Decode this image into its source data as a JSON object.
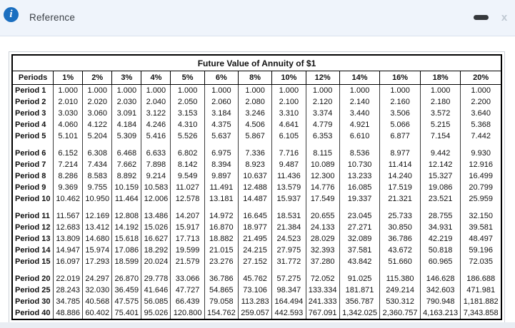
{
  "window": {
    "title": "Reference",
    "icons": {
      "info_glyph": "i",
      "close_glyph": "x"
    }
  },
  "table": {
    "title": "Future Value of Annuity of $1",
    "columns": [
      "Periods",
      "1%",
      "2%",
      "3%",
      "4%",
      "5%",
      "6%",
      "8%",
      "10%",
      "12%",
      "14%",
      "16%",
      "18%",
      "20%"
    ],
    "row_groups": [
      {
        "rows": [
          {
            "label": "Period 1",
            "values": [
              "1.000",
              "1.000",
              "1.000",
              "1.000",
              "1.000",
              "1.000",
              "1.000",
              "1.000",
              "1.000",
              "1.000",
              "1.000",
              "1.000",
              "1.000"
            ]
          },
          {
            "label": "Period 2",
            "values": [
              "2.010",
              "2.020",
              "2.030",
              "2.040",
              "2.050",
              "2.060",
              "2.080",
              "2.100",
              "2.120",
              "2.140",
              "2.160",
              "2.180",
              "2.200"
            ]
          },
          {
            "label": "Period 3",
            "values": [
              "3.030",
              "3.060",
              "3.091",
              "3.122",
              "3.153",
              "3.184",
              "3.246",
              "3.310",
              "3.374",
              "3.440",
              "3.506",
              "3.572",
              "3.640"
            ]
          },
          {
            "label": "Period 4",
            "values": [
              "4.060",
              "4.122",
              "4.184",
              "4.246",
              "4.310",
              "4.375",
              "4.506",
              "4.641",
              "4.779",
              "4.921",
              "5.066",
              "5.215",
              "5.368"
            ]
          },
          {
            "label": "Period 5",
            "values": [
              "5.101",
              "5.204",
              "5.309",
              "5.416",
              "5.526",
              "5.637",
              "5.867",
              "6.105",
              "6.353",
              "6.610",
              "6.877",
              "7.154",
              "7.442"
            ]
          }
        ]
      },
      {
        "rows": [
          {
            "label": "Period 6",
            "values": [
              "6.152",
              "6.308",
              "6.468",
              "6.633",
              "6.802",
              "6.975",
              "7.336",
              "7.716",
              "8.115",
              "8.536",
              "8.977",
              "9.442",
              "9.930"
            ]
          },
          {
            "label": "Period 7",
            "values": [
              "7.214",
              "7.434",
              "7.662",
              "7.898",
              "8.142",
              "8.394",
              "8.923",
              "9.487",
              "10.089",
              "10.730",
              "11.414",
              "12.142",
              "12.916"
            ]
          },
          {
            "label": "Period 8",
            "values": [
              "8.286",
              "8.583",
              "8.892",
              "9.214",
              "9.549",
              "9.897",
              "10.637",
              "11.436",
              "12.300",
              "13.233",
              "14.240",
              "15.327",
              "16.499"
            ]
          },
          {
            "label": "Period 9",
            "values": [
              "9.369",
              "9.755",
              "10.159",
              "10.583",
              "11.027",
              "11.491",
              "12.488",
              "13.579",
              "14.776",
              "16.085",
              "17.519",
              "19.086",
              "20.799"
            ]
          },
          {
            "label": "Period 10",
            "values": [
              "10.462",
              "10.950",
              "11.464",
              "12.006",
              "12.578",
              "13.181",
              "14.487",
              "15.937",
              "17.549",
              "19.337",
              "21.321",
              "23.521",
              "25.959"
            ]
          }
        ]
      },
      {
        "rows": [
          {
            "label": "Period 11",
            "values": [
              "11.567",
              "12.169",
              "12.808",
              "13.486",
              "14.207",
              "14.972",
              "16.645",
              "18.531",
              "20.655",
              "23.045",
              "25.733",
              "28.755",
              "32.150"
            ]
          },
          {
            "label": "Period 12",
            "values": [
              "12.683",
              "13.412",
              "14.192",
              "15.026",
              "15.917",
              "16.870",
              "18.977",
              "21.384",
              "24.133",
              "27.271",
              "30.850",
              "34.931",
              "39.581"
            ]
          },
          {
            "label": "Period 13",
            "values": [
              "13.809",
              "14.680",
              "15.618",
              "16.627",
              "17.713",
              "18.882",
              "21.495",
              "24.523",
              "28.029",
              "32.089",
              "36.786",
              "42.219",
              "48.497"
            ]
          },
          {
            "label": "Period 14",
            "values": [
              "14.947",
              "15.974",
              "17.086",
              "18.292",
              "19.599",
              "21.015",
              "24.215",
              "27.975",
              "32.393",
              "37.581",
              "43.672",
              "50.818",
              "59.196"
            ]
          },
          {
            "label": "Period 15",
            "values": [
              "16.097",
              "17.293",
              "18.599",
              "20.024",
              "21.579",
              "23.276",
              "27.152",
              "31.772",
              "37.280",
              "43.842",
              "51.660",
              "60.965",
              "72.035"
            ]
          }
        ]
      },
      {
        "rows": [
          {
            "label": "Period 20",
            "values": [
              "22.019",
              "24.297",
              "26.870",
              "29.778",
              "33.066",
              "36.786",
              "45.762",
              "57.275",
              "72.052",
              "91.025",
              "115.380",
              "146.628",
              "186.688"
            ]
          },
          {
            "label": "Period 25",
            "values": [
              "28.243",
              "32.030",
              "36.459",
              "41.646",
              "47.727",
              "54.865",
              "73.106",
              "98.347",
              "133.334",
              "181.871",
              "249.214",
              "342.603",
              "471.981"
            ]
          },
          {
            "label": "Period 30",
            "values": [
              "34.785",
              "40.568",
              "47.575",
              "56.085",
              "66.439",
              "79.058",
              "113.283",
              "164.494",
              "241.333",
              "356.787",
              "530.312",
              "790.948",
              "1,181.882"
            ]
          },
          {
            "label": "Period 40",
            "values": [
              "48.886",
              "60.402",
              "75.401",
              "95.026",
              "120.800",
              "154.762",
              "259.057",
              "442.593",
              "767.091",
              "1,342.025",
              "2,360.757",
              "4,163.213",
              "7,343.858"
            ]
          }
        ]
      }
    ]
  }
}
